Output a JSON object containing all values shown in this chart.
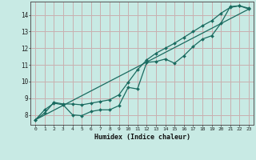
{
  "xlabel": "Humidex (Indice chaleur)",
  "bg_color": "#c8eae4",
  "grid_color": "#c8b0b0",
  "line_color": "#1a6b60",
  "xlim": [
    -0.5,
    23.5
  ],
  "ylim": [
    7.4,
    14.8
  ],
  "xticks": [
    0,
    1,
    2,
    3,
    4,
    5,
    6,
    7,
    8,
    9,
    10,
    11,
    12,
    13,
    14,
    15,
    16,
    17,
    18,
    19,
    20,
    21,
    22,
    23
  ],
  "yticks": [
    8,
    9,
    10,
    11,
    12,
    13,
    14
  ],
  "line1_x": [
    0,
    1,
    2,
    3,
    4,
    5,
    6,
    7,
    8,
    9,
    10,
    11,
    12,
    13,
    14,
    15,
    16,
    17,
    18,
    19,
    20,
    21,
    22,
    23
  ],
  "line1_y": [
    7.7,
    8.3,
    8.7,
    8.6,
    8.0,
    7.95,
    8.2,
    8.3,
    8.3,
    8.55,
    9.65,
    9.55,
    11.15,
    11.2,
    11.35,
    11.1,
    11.55,
    12.1,
    12.55,
    12.75,
    13.5,
    14.5,
    14.55,
    14.4
  ],
  "line2_x": [
    0,
    1,
    2,
    3,
    4,
    5,
    6,
    7,
    8,
    9,
    10,
    11,
    12,
    13,
    14,
    15,
    16,
    17,
    18,
    19,
    20,
    21,
    22,
    23
  ],
  "line2_y": [
    7.7,
    8.1,
    8.75,
    8.65,
    8.65,
    8.6,
    8.7,
    8.8,
    8.9,
    9.2,
    9.95,
    10.7,
    11.3,
    11.7,
    12.0,
    12.3,
    12.65,
    13.0,
    13.35,
    13.65,
    14.1,
    14.45,
    14.55,
    14.35
  ],
  "line3_x": [
    0,
    23
  ],
  "line3_y": [
    7.7,
    14.35
  ],
  "marker_size": 2.0,
  "lw": 0.9
}
